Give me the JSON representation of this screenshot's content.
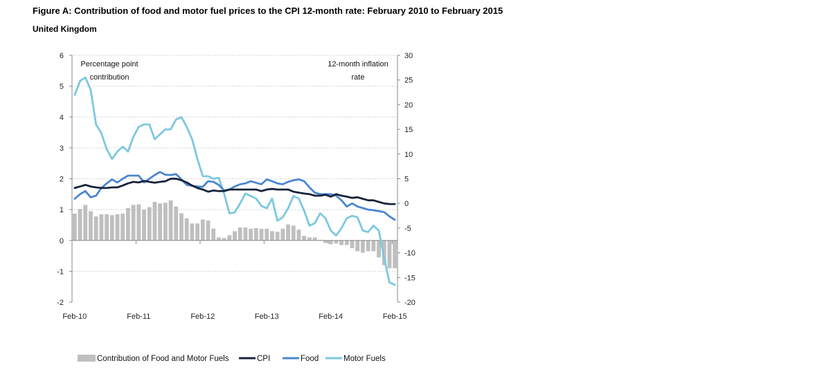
{
  "header": {
    "title": "Figure A: Contribution of food and motor fuel prices to the CPI 12-month rate: February 2010 to February 2015",
    "subtitle": "United Kingdom"
  },
  "colors": {
    "bars": "#bfbfbf",
    "cpi": "#17223b",
    "food": "#4a86d0",
    "fuel": "#7cc8df",
    "grid": "#c8c8c8",
    "axis": "#888888"
  },
  "chart_data": {
    "type": "bar",
    "x": [
      "Feb-10",
      "Mar-10",
      "Apr-10",
      "May-10",
      "Jun-10",
      "Jul-10",
      "Aug-10",
      "Sep-10",
      "Oct-10",
      "Nov-10",
      "Dec-10",
      "Jan-11",
      "Feb-11",
      "Mar-11",
      "Apr-11",
      "May-11",
      "Jun-11",
      "Jul-11",
      "Aug-11",
      "Sep-11",
      "Oct-11",
      "Nov-11",
      "Dec-11",
      "Jan-12",
      "Feb-12",
      "Mar-12",
      "Apr-12",
      "May-12",
      "Jun-12",
      "Jul-12",
      "Aug-12",
      "Sep-12",
      "Oct-12",
      "Nov-12",
      "Dec-12",
      "Jan-13",
      "Feb-13",
      "Mar-13",
      "Apr-13",
      "May-13",
      "Jun-13",
      "Jul-13",
      "Aug-13",
      "Sep-13",
      "Oct-13",
      "Nov-13",
      "Dec-13",
      "Jan-14",
      "Feb-14",
      "Mar-14",
      "Apr-14",
      "May-14",
      "Jun-14",
      "Jul-14",
      "Aug-14",
      "Sep-14",
      "Oct-14",
      "Nov-14",
      "Dec-14",
      "Jan-15",
      "Feb-15"
    ],
    "x_tick_labels": [
      "Feb-10",
      "Feb-11",
      "Feb-12",
      "Feb-13",
      "Feb-14",
      "Feb-15"
    ],
    "y_left": {
      "label": "Percentage point contribution",
      "lim": [
        -2,
        6
      ],
      "ticks": [
        "-2",
        "-1",
        "0",
        "1",
        "2",
        "3",
        "4",
        "5",
        "6"
      ]
    },
    "y_right": {
      "label": "12-month inflation rate",
      "lim": [
        -20,
        30
      ],
      "ticks": [
        "-20",
        "-15",
        "-10",
        "-5",
        "0",
        "5",
        "10",
        "15",
        "20",
        "25",
        "30"
      ]
    },
    "grid": true,
    "legend_position": "bottom",
    "series": [
      {
        "name": "Contribution of Food and Motor Fuels",
        "type": "bar",
        "axis": "left",
        "values": [
          0.87,
          1.02,
          1.15,
          0.95,
          0.78,
          0.85,
          0.85,
          0.82,
          0.85,
          0.87,
          1.05,
          1.15,
          1.17,
          1.0,
          1.08,
          1.25,
          1.2,
          1.22,
          1.3,
          1.1,
          0.88,
          0.72,
          0.55,
          0.55,
          0.68,
          0.65,
          0.38,
          0.1,
          0.08,
          0.17,
          0.3,
          0.42,
          0.42,
          0.38,
          0.4,
          0.38,
          0.38,
          0.3,
          0.28,
          0.38,
          0.52,
          0.48,
          0.35,
          0.15,
          0.1,
          0.1,
          0.02,
          -0.08,
          -0.12,
          -0.1,
          -0.15,
          -0.15,
          -0.25,
          -0.35,
          -0.4,
          -0.35,
          -0.35,
          -0.55,
          -0.8,
          -0.9,
          -0.9
        ]
      },
      {
        "name": "CPI",
        "type": "line",
        "axis": "left",
        "values": [
          1.7,
          1.75,
          1.8,
          1.75,
          1.72,
          1.7,
          1.7,
          1.72,
          1.72,
          1.78,
          1.85,
          1.9,
          1.88,
          1.93,
          1.9,
          1.87,
          1.9,
          1.92,
          2.0,
          2.0,
          1.95,
          1.88,
          1.78,
          1.7,
          1.65,
          1.58,
          1.62,
          1.6,
          1.6,
          1.65,
          1.65,
          1.65,
          1.65,
          1.65,
          1.65,
          1.6,
          1.65,
          1.67,
          1.65,
          1.65,
          1.65,
          1.58,
          1.55,
          1.52,
          1.5,
          1.45,
          1.45,
          1.48,
          1.42,
          1.5,
          1.45,
          1.42,
          1.38,
          1.4,
          1.35,
          1.3,
          1.3,
          1.25,
          1.2,
          1.18,
          1.18
        ]
      },
      {
        "name": "Food",
        "type": "line",
        "axis": "left",
        "values": [
          1.35,
          1.5,
          1.6,
          1.4,
          1.45,
          1.7,
          1.85,
          1.98,
          1.88,
          2.0,
          2.1,
          2.1,
          2.1,
          1.88,
          2.0,
          2.12,
          2.22,
          2.13,
          2.12,
          2.15,
          1.98,
          1.8,
          1.77,
          1.75,
          1.74,
          1.92,
          1.9,
          1.8,
          1.62,
          1.65,
          1.75,
          1.82,
          1.85,
          1.92,
          1.87,
          1.82,
          1.98,
          1.92,
          1.85,
          1.82,
          1.9,
          1.95,
          1.98,
          1.92,
          1.72,
          1.55,
          1.5,
          1.5,
          1.5,
          1.45,
          1.3,
          1.1,
          1.2,
          1.1,
          1.05,
          1.0,
          0.98,
          0.95,
          0.92,
          0.78,
          0.67
        ]
      },
      {
        "name": "Motor Fuels",
        "type": "line",
        "axis": "right",
        "values": [
          22,
          24.8,
          25.5,
          23,
          16,
          14.2,
          11,
          9,
          10.5,
          11.5,
          10.5,
          13.5,
          15.5,
          16,
          16,
          13,
          14,
          15,
          15,
          17,
          17.5,
          15.5,
          13,
          9,
          5.5,
          5.5,
          5,
          5.2,
          2,
          -2,
          -1.8,
          0,
          2,
          1.5,
          1,
          -0.5,
          -1,
          1,
          -3.5,
          -2.8,
          -1,
          1.5,
          1,
          -1.5,
          -4.5,
          -4,
          -2,
          -3,
          -5.5,
          -6.5,
          -5,
          -3,
          -2.5,
          -2.8,
          -5.5,
          -5.8,
          -4.5,
          -5.5,
          -11,
          -16,
          -16.5
        ]
      }
    ]
  }
}
